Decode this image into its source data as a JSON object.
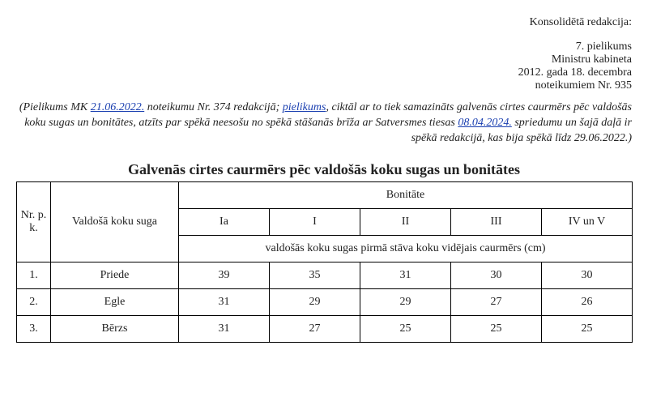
{
  "header": {
    "consolidated": "Konsolidētā redakcija:",
    "annex": "7. pielikums",
    "cabinet": "Ministru kabineta",
    "date": "2012. gada 18. decembra",
    "reg": "noteikumiem Nr. 935"
  },
  "note": {
    "t1": "(Pielikums MK ",
    "link1": "21.06.2022.",
    "t2": " noteikumu Nr. 374 redakcijā; ",
    "link2": "pielikums",
    "t3": ", ciktāl ar to tiek samazināts galvenās cirtes caurmērs pēc valdošās koku sugas un bonitātes, atzīts par spēkā neesošu no spēkā stāšanās brīža ar Satversmes tiesas ",
    "link3": "08.04.2024.",
    "t4": " spriedumu un šajā daļā ir spēkā redakcijā, kas bija spēkā līdz 29.06.2022.)"
  },
  "title": "Galvenās cirtes caurmērs pēc valdošās koku sugas un bonitātes",
  "table": {
    "col_nr": "Nr. p. k.",
    "col_species": "Valdošā koku suga",
    "col_bon_group": "Bonitāte",
    "bon_headers": [
      "Ia",
      "I",
      "II",
      "III",
      "IV un V"
    ],
    "subheader": "valdošās koku sugas pirmā stāva koku vidējais caurmērs (cm)",
    "rows": [
      {
        "nr": "1.",
        "species": "Priede",
        "v": [
          "39",
          "35",
          "31",
          "30",
          "30"
        ]
      },
      {
        "nr": "2.",
        "species": "Egle",
        "v": [
          "31",
          "29",
          "29",
          "27",
          "26"
        ]
      },
      {
        "nr": "3.",
        "species": "Bērzs",
        "v": [
          "31",
          "27",
          "25",
          "25",
          "25"
        ]
      }
    ]
  }
}
